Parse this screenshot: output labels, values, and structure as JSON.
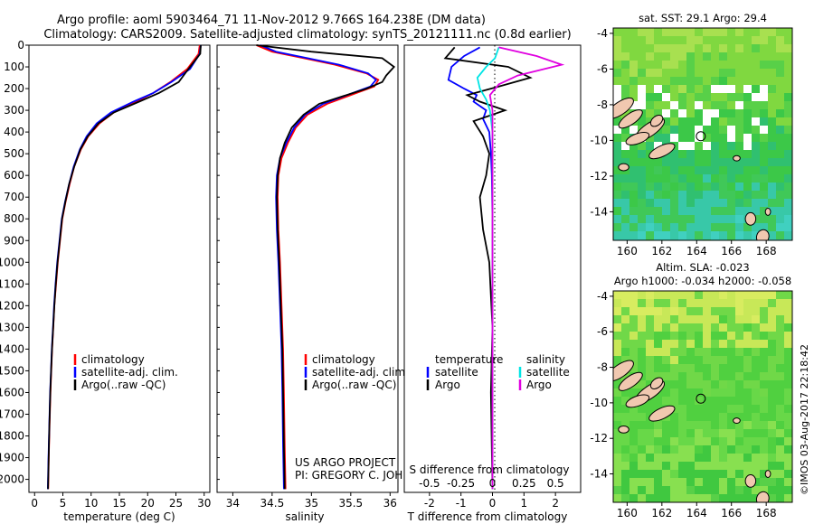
{
  "header": {
    "line1": "Argo profile: aoml 5903464_71 11-Nov-2012 9.766S 164.238E (DM data)",
    "line2": "Climatology: CARS2009. Satellite-adjusted climatology: synTS_20121111.nc (0.8d earlier)"
  },
  "colors": {
    "climatology": "#ff0000",
    "satellite": "#0000ff",
    "argo": "#000000",
    "sal_satellite": "#00e5e5",
    "sal_argo": "#e000e0",
    "land": "#f0c8b0",
    "missing": "#ffffff",
    "sst_field": "#40c040",
    "sla_field": "#50d050"
  },
  "chart_data": [
    {
      "type": "line",
      "id": "temperature-profile",
      "xlabel": "temperature (deg C)",
      "ylabel": "",
      "xlim": [
        -1,
        31
      ],
      "ylim": [
        2060,
        0
      ],
      "xticks": [
        "0",
        "5",
        "10",
        "15",
        "20",
        "25",
        "30"
      ],
      "xtick_values": [
        0,
        5,
        10,
        15,
        20,
        25,
        30
      ],
      "yticks": [
        "0",
        "100",
        "200",
        "300",
        "400",
        "500",
        "600",
        "700",
        "800",
        "900",
        "1000",
        "1100",
        "1200",
        "1300",
        "1400",
        "1500",
        "1600",
        "1700",
        "1800",
        "1900",
        "2000"
      ],
      "ytick_values": [
        0,
        100,
        200,
        300,
        400,
        500,
        600,
        700,
        800,
        900,
        1000,
        1100,
        1200,
        1300,
        1400,
        1500,
        1600,
        1700,
        1800,
        1900,
        2000
      ],
      "legend": [
        "climatology",
        "satellite-adj. clim.",
        "Argo(..raw -QC)"
      ],
      "series": [
        {
          "name": "climatology",
          "color": "#ff0000",
          "x": [
            29.2,
            29.0,
            27,
            24,
            21,
            18,
            14,
            11.5,
            9.5,
            8.2,
            7.0,
            6.2,
            5.5,
            4.9,
            4.5,
            4.1,
            3.8,
            3.5,
            3.3,
            3.1,
            2.95,
            2.8,
            2.65,
            2.5,
            2.4
          ],
          "y": [
            0,
            40,
            110,
            170,
            220,
            260,
            310,
            360,
            420,
            480,
            560,
            640,
            720,
            800,
            900,
            1000,
            1100,
            1200,
            1300,
            1400,
            1500,
            1600,
            1750,
            1900,
            2045
          ]
        },
        {
          "name": "satellite",
          "color": "#0000ff",
          "x": [
            29.4,
            29.2,
            27.5,
            24.2,
            21,
            17.5,
            13.5,
            11,
            9.2,
            8.0,
            6.9,
            6.1,
            5.4,
            4.8,
            4.4,
            4.0,
            3.7,
            3.45,
            3.25,
            3.05,
            2.9,
            2.75,
            2.6,
            2.45,
            2.35
          ],
          "y": [
            0,
            40,
            110,
            170,
            220,
            260,
            310,
            360,
            420,
            480,
            560,
            640,
            720,
            800,
            900,
            1000,
            1100,
            1200,
            1300,
            1400,
            1500,
            1600,
            1750,
            1900,
            2045
          ]
        },
        {
          "name": "Argo",
          "color": "#000000",
          "x": [
            29.4,
            29.3,
            27.2,
            25.5,
            22,
            18.5,
            14,
            11.3,
            9.4,
            8.1,
            7.0,
            6.1,
            5.45,
            4.85,
            4.45,
            4.05,
            3.75,
            3.5,
            3.28,
            3.08,
            2.92,
            2.78,
            2.62,
            2.48,
            2.38
          ],
          "y": [
            0,
            40,
            110,
            170,
            220,
            260,
            310,
            360,
            420,
            480,
            560,
            640,
            720,
            800,
            900,
            1000,
            1100,
            1200,
            1300,
            1400,
            1500,
            1600,
            1750,
            1900,
            2045
          ]
        }
      ]
    },
    {
      "type": "line",
      "id": "salinity-profile",
      "xlabel": "salinity",
      "xlim": [
        33.8,
        36.1
      ],
      "ylim": [
        2060,
        0
      ],
      "xticks": [
        "34",
        "34.5",
        "35",
        "35.5",
        "36"
      ],
      "xtick_values": [
        34,
        34.5,
        35,
        35.5,
        36
      ],
      "legend": [
        "climatology",
        "satellite-adj. clim.",
        "Argo(..raw -QC)"
      ],
      "annotation": [
        "US ARGO PROJECT",
        "PI: GREGORY C. JOHNSON"
      ],
      "series": [
        {
          "name": "climatology",
          "color": "#ff0000",
          "x": [
            34.3,
            34.5,
            34.9,
            35.3,
            35.7,
            35.85,
            35.8,
            35.5,
            35.2,
            34.95,
            34.8,
            34.7,
            34.62,
            34.58,
            34.57,
            34.58,
            34.6,
            34.62,
            34.64,
            34.65,
            34.66,
            34.67
          ],
          "y": [
            0,
            30,
            60,
            90,
            130,
            160,
            190,
            230,
            270,
            320,
            380,
            450,
            520,
            600,
            700,
            850,
            1000,
            1200,
            1400,
            1600,
            1850,
            2045
          ]
        },
        {
          "name": "satellite",
          "color": "#0000ff",
          "x": [
            34.35,
            34.55,
            34.95,
            35.35,
            35.72,
            35.82,
            35.75,
            35.45,
            35.15,
            34.92,
            34.78,
            34.68,
            34.6,
            34.56,
            34.55,
            34.56,
            34.58,
            34.6,
            34.62,
            34.63,
            34.64,
            34.65
          ],
          "y": [
            0,
            30,
            60,
            90,
            130,
            160,
            190,
            230,
            270,
            320,
            380,
            450,
            520,
            600,
            700,
            850,
            1000,
            1200,
            1400,
            1600,
            1850,
            2045
          ]
        },
        {
          "name": "Argo",
          "color": "#000000",
          "x": [
            34.3,
            35.0,
            35.9,
            36.05,
            35.95,
            35.9,
            35.7,
            35.4,
            35.1,
            34.9,
            34.75,
            34.66,
            34.6,
            34.57,
            34.56,
            34.57,
            34.59,
            34.61,
            34.63,
            34.64,
            34.65,
            34.66
          ],
          "y": [
            0,
            30,
            60,
            100,
            140,
            170,
            200,
            235,
            270,
            320,
            380,
            450,
            520,
            600,
            700,
            850,
            1000,
            1200,
            1400,
            1600,
            1850,
            2045
          ]
        }
      ]
    },
    {
      "type": "line",
      "id": "difference-profile",
      "xlabel": "T difference from climatology",
      "xlabel_top": "S difference from climatology",
      "xlim_T": [
        -2.8,
        2.8
      ],
      "xticks_T": [
        "-2",
        "-1",
        "0",
        "1",
        "2"
      ],
      "xtick_values_T": [
        -2,
        -1,
        0,
        1,
        2
      ],
      "xticks_S": [
        "-0.5",
        "-0.25",
        "0",
        "0.25",
        "0.5"
      ],
      "xtick_values_S": [
        -0.5,
        -0.25,
        0,
        0.25,
        0.5
      ],
      "legend_temperature": {
        "title": "temperature",
        "items": [
          "satellite",
          "Argo"
        ]
      },
      "legend_salinity": {
        "title": "salinity",
        "items": [
          "satellite",
          "Argo"
        ]
      },
      "series": [
        {
          "name": "T satellite",
          "color": "#0000ff",
          "x": [
            -0.4,
            -0.9,
            -1.3,
            -1.4,
            -0.9,
            -0.5,
            -0.6,
            -0.2,
            -0.3,
            -0.1,
            -0.05,
            -0.02,
            0,
            0,
            0,
            0,
            0,
            0
          ],
          "y": [
            10,
            50,
            100,
            160,
            200,
            230,
            260,
            300,
            340,
            400,
            500,
            600,
            800,
            1000,
            1300,
            1600,
            1900,
            2045
          ]
        },
        {
          "name": "T Argo",
          "color": "#000000",
          "x": [
            -1.2,
            -1.5,
            0.5,
            1.2,
            0.2,
            -0.8,
            -0.4,
            0.4,
            -0.6,
            -0.3,
            -0.1,
            -0.2,
            -0.4,
            -0.3,
            -0.1,
            0,
            -0.05,
            0
          ],
          "y": [
            10,
            60,
            100,
            150,
            190,
            230,
            260,
            300,
            350,
            420,
            500,
            600,
            700,
            850,
            1000,
            1300,
            1600,
            2045
          ]
        },
        {
          "name": "S satellite",
          "color": "#00e5e5",
          "x": [
            0.05,
            0.02,
            -0.05,
            -0.12,
            -0.1,
            -0.05,
            -0.02,
            0,
            0,
            0,
            0,
            0,
            0,
            0
          ],
          "y": [
            10,
            60,
            100,
            150,
            200,
            250,
            300,
            400,
            500,
            700,
            1000,
            1400,
            1800,
            2045
          ]
        },
        {
          "name": "S Argo",
          "color": "#e000e0",
          "x": [
            0.05,
            0.35,
            0.55,
            0.2,
            0.05,
            -0.02,
            0,
            0
          ],
          "y": [
            10,
            50,
            90,
            140,
            180,
            230,
            300,
            2045
          ]
        }
      ]
    },
    {
      "type": "heatmap",
      "id": "sst-map",
      "title": "sat. SST: 29.1  Argo: 29.4",
      "xticks": [
        "160",
        "162",
        "164",
        "166",
        "168"
      ],
      "xtick_values": [
        160,
        162,
        164,
        166,
        168
      ],
      "yticks": [
        "-4",
        "-6",
        "-8",
        "-10",
        "-12",
        "-14"
      ],
      "ytick_values": [
        -4,
        -6,
        -8,
        -10,
        -12,
        -14
      ],
      "xlim": [
        159.2,
        169.5
      ],
      "ylim": [
        -15.6,
        -3.7
      ],
      "profile_lon": 164.238,
      "profile_lat": -9.766
    },
    {
      "type": "heatmap",
      "id": "sla-map",
      "title_line1": "Altim. SLA: -0.023",
      "title_line2": "Argo h1000: -0.034 h2000: -0.058",
      "xticks": [
        "160",
        "162",
        "164",
        "166",
        "168"
      ],
      "xtick_values": [
        160,
        162,
        164,
        166,
        168
      ],
      "yticks": [
        "-4",
        "-6",
        "-8",
        "-10",
        "-12",
        "-14"
      ],
      "ytick_values": [
        -4,
        -6,
        -8,
        -10,
        -12,
        -14
      ],
      "xlim": [
        159.2,
        169.5
      ],
      "ylim": [
        -15.6,
        -3.7
      ],
      "profile_lon": 164.238,
      "profile_lat": -9.766
    }
  ],
  "footer": {
    "credit": "©IMOS 03-Aug-2017 22:18:42"
  }
}
